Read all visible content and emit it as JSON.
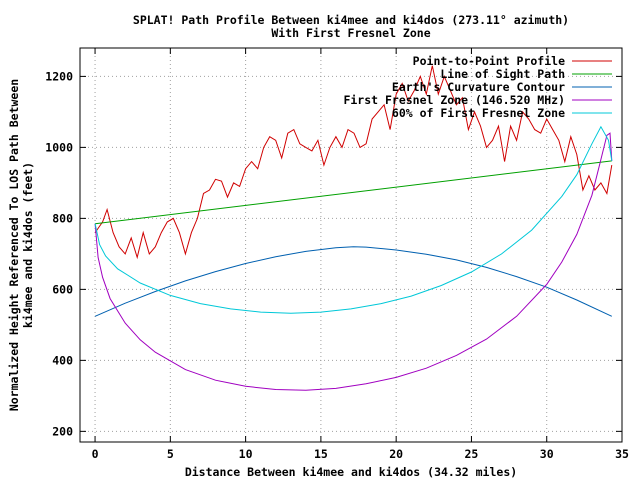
{
  "chart_data": {
    "type": "line",
    "title": "SPLAT! Path Profile Between ki4mee and ki4dos (273.11° azimuth)",
    "subtitle": "With First Fresnel Zone",
    "xlabel": "Distance Between ki4mee and ki4dos (34.32 miles)",
    "ylabel_line1": "Normalized Height Referenced To LOS Path Between",
    "ylabel_line2": "ki4mee and ki4dos (feet)",
    "xlim": [
      -1,
      35
    ],
    "ylim": [
      170,
      1280
    ],
    "xticks": [
      0,
      5,
      10,
      15,
      20,
      25,
      30,
      35
    ],
    "yticks": [
      200,
      400,
      600,
      800,
      1000,
      1200
    ],
    "grid": true,
    "legend_position": "top-right",
    "series": [
      {
        "name": "Point-to-Point Profile",
        "color": "#d00000",
        "x": [
          0,
          0.5,
          0.8,
          1.2,
          1.6,
          2.0,
          2.4,
          2.8,
          3.2,
          3.6,
          4.0,
          4.4,
          4.8,
          5.2,
          5.6,
          6.0,
          6.4,
          6.8,
          7.2,
          7.6,
          8.0,
          8.4,
          8.8,
          9.2,
          9.6,
          10.0,
          10.4,
          10.8,
          11.2,
          11.6,
          12.0,
          12.4,
          12.8,
          13.2,
          13.6,
          14.0,
          14.4,
          14.8,
          15.2,
          15.6,
          16.0,
          16.4,
          16.8,
          17.2,
          17.6,
          18.0,
          18.4,
          18.8,
          19.2,
          19.6,
          20.0,
          20.4,
          20.8,
          21.2,
          21.6,
          22.0,
          22.4,
          22.8,
          23.2,
          23.6,
          24.0,
          24.4,
          24.8,
          25.2,
          25.6,
          26.0,
          26.4,
          26.8,
          27.2,
          27.6,
          28.0,
          28.4,
          28.8,
          29.2,
          29.6,
          30.0,
          30.4,
          30.8,
          31.2,
          31.6,
          32.0,
          32.4,
          32.8,
          33.2,
          33.6,
          34.0,
          34.32
        ],
        "y": [
          760,
          790,
          825,
          760,
          720,
          700,
          745,
          690,
          760,
          700,
          720,
          760,
          790,
          800,
          760,
          700,
          760,
          800,
          870,
          880,
          910,
          905,
          860,
          900,
          890,
          940,
          960,
          940,
          1000,
          1030,
          1020,
          970,
          1040,
          1050,
          1010,
          1000,
          990,
          1020,
          950,
          1000,
          1030,
          1000,
          1050,
          1040,
          1000,
          1010,
          1080,
          1100,
          1120,
          1050,
          1150,
          1180,
          1130,
          1160,
          1200,
          1150,
          1230,
          1150,
          1200,
          1160,
          1120,
          1140,
          1050,
          1100,
          1060,
          1000,
          1020,
          1060,
          960,
          1060,
          1020,
          1100,
          1080,
          1050,
          1040,
          1080,
          1050,
          1020,
          960,
          1030,
          980,
          880,
          920,
          880,
          900,
          870,
          950
        ]
      },
      {
        "name": "Line of Sight Path",
        "color": "#00a000",
        "x": [
          0,
          34.32
        ],
        "y": [
          785,
          962
        ]
      },
      {
        "name": "Earth's Curvature Contour",
        "color": "#0060b0",
        "x": [
          0,
          2,
          4,
          6,
          8,
          10,
          12,
          14,
          16,
          17.16,
          18,
          20,
          22,
          24,
          26,
          28,
          30,
          32,
          34.32
        ],
        "y": [
          524,
          561,
          594,
          624,
          650,
          673,
          692,
          707,
          717,
          720,
          719,
          711,
          699,
          683,
          662,
          636,
          606,
          570,
          524
        ]
      },
      {
        "name": "First Fresnel Zone (146.520 MHz)",
        "color": "#a000c0",
        "x": [
          0,
          0.2,
          0.5,
          1,
          2,
          3,
          4,
          6,
          8,
          10,
          12,
          14,
          16,
          18,
          20,
          22,
          24,
          26,
          28,
          30,
          31,
          32,
          33,
          33.5,
          34,
          34.2,
          34.32
        ],
        "y": [
          785,
          690,
          634,
          574,
          505,
          458,
          423,
          374,
          344,
          327,
          318,
          316,
          321,
          334,
          352,
          378,
          414,
          460,
          524,
          614,
          677,
          755,
          865,
          949,
          1034,
          1040,
          962
        ]
      },
      {
        "name": "60% of First Fresnel Zone",
        "color": "#00c8d8",
        "x": [
          0,
          0.3,
          0.7,
          1.5,
          3,
          5,
          7,
          9,
          11,
          13,
          15,
          17,
          19,
          21,
          23,
          25,
          27,
          29,
          31,
          32,
          33,
          33.6,
          34.1,
          34.32
        ],
        "y": [
          785,
          726,
          694,
          658,
          618,
          583,
          560,
          545,
          536,
          533,
          536,
          545,
          560,
          581,
          611,
          649,
          700,
          767,
          862,
          923,
          1010,
          1058,
          1020,
          962
        ]
      }
    ]
  }
}
